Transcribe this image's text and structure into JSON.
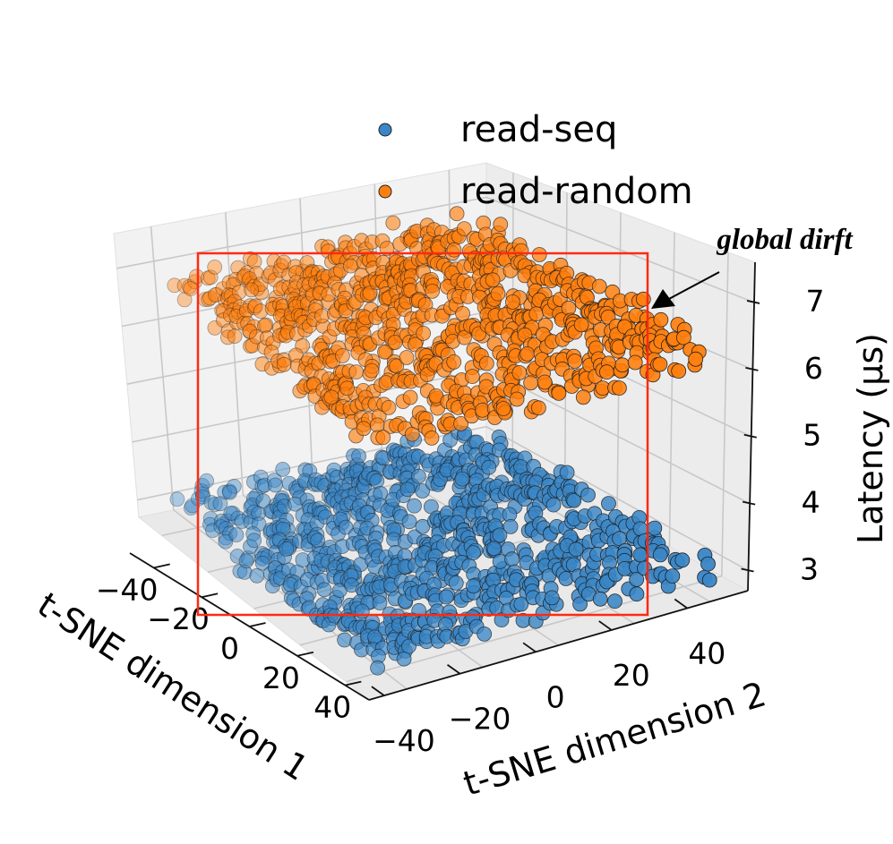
{
  "chart_data": {
    "type": "scatter",
    "projection": "3d",
    "grid": true,
    "legend_placement": "top-center",
    "xlabel": "t-SNE dimension 1",
    "ylabel": "t-SNE dimension 2",
    "zlabel": "Latency (µs)",
    "x_ticks": [
      "−40",
      "−20",
      "0",
      "20",
      "40"
    ],
    "y_ticks": [
      "−40",
      "−20",
      "0",
      "20",
      "40"
    ],
    "z_ticks": [
      "3",
      "4",
      "5",
      "6",
      "7"
    ],
    "xlim": [
      -50,
      50
    ],
    "ylim": [
      -50,
      50
    ],
    "zlim": [
      2.7,
      7.6
    ],
    "series": [
      {
        "name": "read-seq",
        "color": "#3a86c6",
        "latency_center": 3.1,
        "latency_spread": 0.3,
        "tsne_range": [
          -45,
          45
        ],
        "approx_points": 900
      },
      {
        "name": "read-random",
        "color": "#ff7f0e",
        "latency_center": 6.9,
        "latency_spread": 0.3,
        "tsne_range": [
          -45,
          45
        ],
        "approx_points": 900
      }
    ],
    "annotation": {
      "text": "global dirft",
      "target": "read-random cluster"
    },
    "highlight_box_color": "#ff2a12"
  }
}
